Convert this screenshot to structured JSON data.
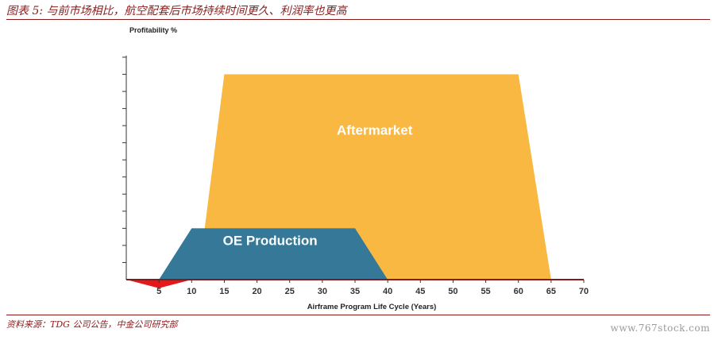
{
  "page": {
    "title": "图表 5: 与前市场相比，航空配套后市场持续时间更久、利润率也更高",
    "source": "资料来源：TDG 公司公告，中金公司研究部",
    "watermark": "www.767stock.com"
  },
  "chart_data": {
    "type": "area",
    "title": "",
    "xlabel": "Airframe Program Life Cycle (Years)",
    "ylabel": "Profitability %",
    "xlim": [
      0,
      70
    ],
    "x_ticks": [
      5,
      10,
      15,
      20,
      25,
      30,
      35,
      40,
      45,
      50,
      55,
      60,
      65,
      70
    ],
    "y_tick_count": 13,
    "ylim": [
      -1,
      13
    ],
    "grid": false,
    "legend": "none",
    "series": [
      {
        "name": "Aftermarket",
        "color": "#F9B841",
        "points": [
          [
            11,
            0
          ],
          [
            15,
            12
          ],
          [
            60,
            12
          ],
          [
            65,
            0
          ]
        ]
      },
      {
        "name": "OE Production",
        "color": "#357897",
        "points": [
          [
            5,
            0
          ],
          [
            10,
            3
          ],
          [
            35,
            3
          ],
          [
            40,
            0
          ]
        ]
      },
      {
        "name": "",
        "color": "#E5181A",
        "points": [
          [
            0,
            0
          ],
          [
            10,
            0
          ],
          [
            5,
            -0.5
          ]
        ]
      }
    ],
    "colors": {
      "axis": "#8a1a1a",
      "text": "#333333"
    }
  }
}
